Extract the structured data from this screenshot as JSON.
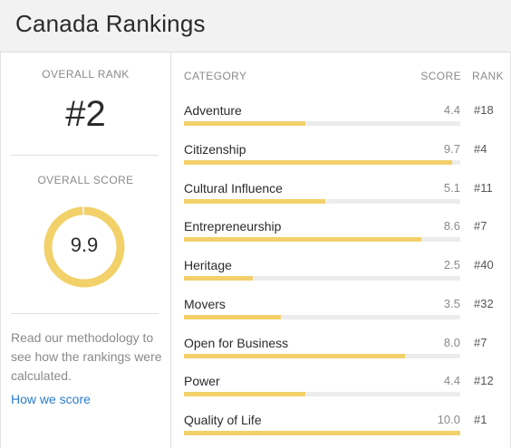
{
  "header": {
    "title": "Canada Rankings"
  },
  "summary": {
    "overall_rank_label": "OVERALL RANK",
    "overall_rank_value": "#2",
    "overall_score_label": "OVERALL SCORE",
    "overall_score_value": "9.9",
    "overall_score_fraction": 0.99,
    "methodology_text": "Read our methodology to see how the rankings were calculated.",
    "how_we_score_link": "How we score"
  },
  "table": {
    "headers": {
      "category": "CATEGORY",
      "score": "SCORE",
      "rank": "RANK"
    },
    "max_score": 10,
    "rows": [
      {
        "category": "Adventure",
        "score": "4.4",
        "rank": "#18"
      },
      {
        "category": "Citizenship",
        "score": "9.7",
        "rank": "#4"
      },
      {
        "category": "Cultural Influence",
        "score": "5.1",
        "rank": "#11"
      },
      {
        "category": "Entrepreneurship",
        "score": "8.6",
        "rank": "#7"
      },
      {
        "category": "Heritage",
        "score": "2.5",
        "rank": "#40"
      },
      {
        "category": "Movers",
        "score": "3.5",
        "rank": "#32"
      },
      {
        "category": "Open for Business",
        "score": "8.0",
        "rank": "#7"
      },
      {
        "category": "Power",
        "score": "4.4",
        "rank": "#12"
      },
      {
        "category": "Quality of Life",
        "score": "10.0",
        "rank": "#1"
      }
    ]
  },
  "colors": {
    "accent": "#f3d16a",
    "track": "#ececec",
    "link": "#2b7cd1",
    "header_bg": "#f2f2f2"
  }
}
